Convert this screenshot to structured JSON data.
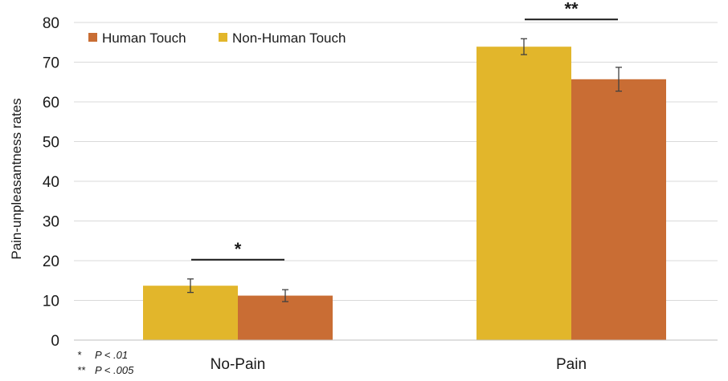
{
  "chart_data": {
    "type": "bar",
    "categories": [
      "No-Pain",
      "Pain"
    ],
    "series": [
      {
        "name": "Non-Human Touch",
        "color": "#E2B62B",
        "values": [
          13.7,
          73.9
        ],
        "errors": [
          1.7,
          2.0
        ]
      },
      {
        "name": "Human Touch",
        "color": "#C96D34",
        "values": [
          11.2,
          65.7
        ],
        "errors": [
          1.5,
          3.0
        ]
      }
    ],
    "legend_order": [
      "Human Touch",
      "Non-Human Touch"
    ],
    "legend_position": "top-left",
    "ylabel": "Pain-unpleasantness rates",
    "xlabel": "",
    "ylim": [
      0,
      80
    ],
    "yticks": [
      0,
      10,
      20,
      30,
      40,
      50,
      60,
      70,
      80
    ],
    "grid": true,
    "grid_color": "#d9d9d9",
    "significance": [
      {
        "category": "No-Pain",
        "label": "*"
      },
      {
        "category": "Pain",
        "label": "**"
      }
    ],
    "footnotes": [
      {
        "marker": "*",
        "text": "P <  .01"
      },
      {
        "marker": "**",
        "text": "P <  .005"
      }
    ]
  }
}
